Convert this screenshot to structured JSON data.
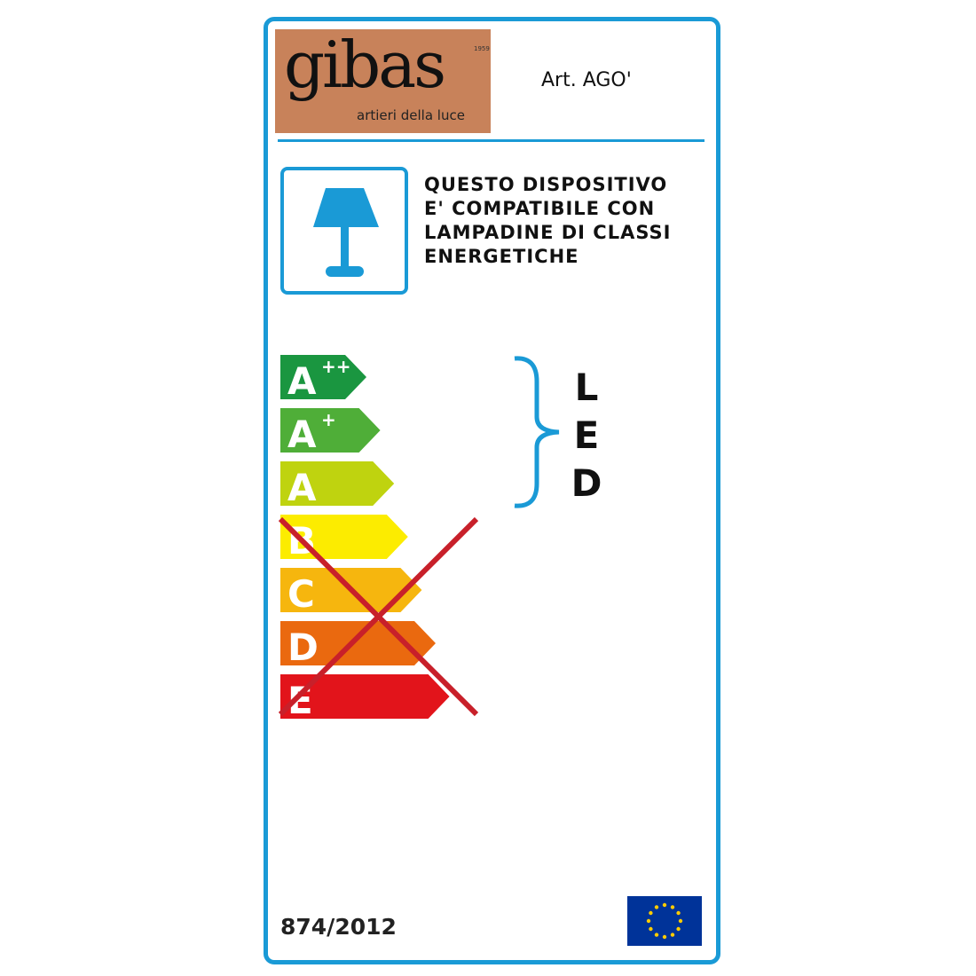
{
  "brand": {
    "name": "gibas",
    "year": "1959",
    "tagline": "artieri della luce",
    "color": "#c8825a"
  },
  "article": "Art. AGO'",
  "compatibility_text": [
    "QUESTO DISPOSITIVO",
    "E' COMPATIBILE CON",
    "LAMPADINE DI CLASSI",
    "ENERGETICHE"
  ],
  "icon": "table-lamp-icon",
  "energy_classes": [
    {
      "label": "A",
      "sup": "++",
      "color": "#1a9640",
      "crossed": false
    },
    {
      "label": "A",
      "sup": "+",
      "color": "#4fae38",
      "crossed": false
    },
    {
      "label": "A",
      "sup": "",
      "color": "#bfd30f",
      "crossed": false
    },
    {
      "label": "B",
      "sup": "",
      "color": "#fcec00",
      "crossed": true
    },
    {
      "label": "C",
      "sup": "",
      "color": "#f6b60e",
      "crossed": true
    },
    {
      "label": "D",
      "sup": "",
      "color": "#ea690f",
      "crossed": true
    },
    {
      "label": "E",
      "sup": "",
      "color": "#e2141b",
      "crossed": true
    }
  ],
  "bracket_label": [
    "L",
    "E",
    "D"
  ],
  "regulation": "874/2012",
  "accent_color": "#1a9ad6",
  "eu_flag": "eu-flag-icon"
}
